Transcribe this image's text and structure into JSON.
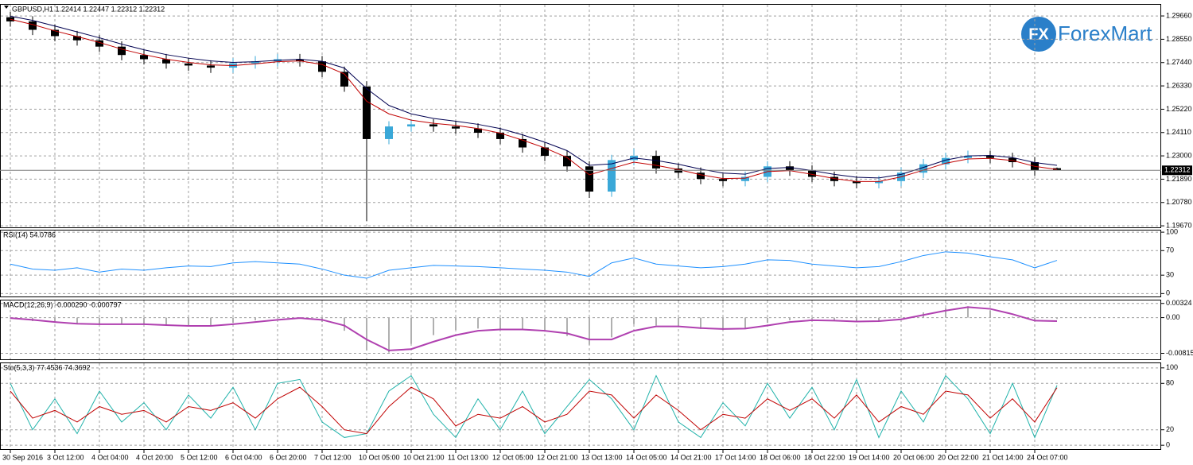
{
  "logo": {
    "mark": "FX",
    "text": "ForexMart"
  },
  "chart_data": [
    {
      "type": "candlestick",
      "title": "GBPUSD,H1  1.22414 1.22447 1.22312 1.22312",
      "last_price": 1.22312,
      "grid": true,
      "categories": [
        "30 Sep 2016",
        null,
        "3 Oct 12:00",
        null,
        "4 Oct 04:00",
        null,
        "4 Oct 20:00",
        null,
        "5 Oct 12:00",
        null,
        "6 Oct 04:00",
        null,
        "6 Oct 20:00",
        null,
        "7 Oct 12:00",
        null,
        "10 Oct 05:00",
        null,
        "10 Oct 21:00",
        null,
        "11 Oct 13:00",
        null,
        "12 Oct 05:00",
        null,
        "12 Oct 21:00",
        null,
        "13 Oct 13:00",
        null,
        "14 Oct 05:00",
        null,
        "14 Oct 21:00",
        null,
        "17 Oct 14:00",
        null,
        "18 Oct 06:00",
        null,
        "18 Oct 22:00",
        null,
        "19 Oct 14:00",
        null,
        "20 Oct 06:00",
        null,
        "20 Oct 22:00",
        null,
        "21 Oct 14:00",
        null,
        "24 Oct 07:00",
        null
      ],
      "open": [
        1.296,
        1.294,
        1.29,
        1.287,
        1.285,
        1.282,
        1.278,
        1.276,
        1.274,
        1.273,
        1.272,
        1.274,
        1.275,
        1.276,
        1.275,
        1.27,
        1.263,
        1.238,
        1.244,
        1.245,
        1.244,
        1.243,
        1.241,
        1.238,
        1.234,
        1.23,
        1.225,
        1.213,
        1.228,
        1.23,
        1.224,
        1.222,
        1.219,
        1.218,
        1.22,
        1.225,
        1.223,
        1.22,
        1.218,
        1.217,
        1.218,
        1.222,
        1.226,
        1.229,
        1.23,
        1.229,
        1.227,
        1.22414
      ],
      "high": [
        1.2985,
        1.2965,
        1.2925,
        1.2895,
        1.2875,
        1.2845,
        1.2805,
        1.2785,
        1.2765,
        1.2755,
        1.2765,
        1.2775,
        1.2785,
        1.2785,
        1.2775,
        1.2725,
        1.2655,
        1.2465,
        1.2475,
        1.2475,
        1.2465,
        1.2455,
        1.2435,
        1.2405,
        1.2365,
        1.2325,
        1.2275,
        1.2305,
        1.2335,
        1.2325,
        1.2265,
        1.2245,
        1.2215,
        1.2225,
        1.2275,
        1.2275,
        1.2255,
        1.2225,
        1.2205,
        1.2205,
        1.2245,
        1.2285,
        1.2315,
        1.2325,
        1.2325,
        1.2315,
        1.2295,
        1.22447
      ],
      "low": [
        1.2915,
        1.2875,
        1.2845,
        1.2825,
        1.2795,
        1.2755,
        1.2735,
        1.2715,
        1.2705,
        1.2695,
        1.2695,
        1.2715,
        1.2725,
        1.2725,
        1.2675,
        1.2605,
        1.199,
        1.2355,
        1.2415,
        1.2415,
        1.2405,
        1.2385,
        1.2355,
        1.2315,
        1.2275,
        1.2225,
        1.21,
        1.2105,
        1.2255,
        1.2215,
        1.2195,
        1.2165,
        1.2155,
        1.2155,
        1.2175,
        1.2205,
        1.2175,
        1.2155,
        1.2145,
        1.2145,
        1.2155,
        1.2195,
        1.2235,
        1.2265,
        1.2265,
        1.2245,
        1.2205,
        1.22312
      ],
      "close": [
        1.294,
        1.29,
        1.287,
        1.285,
        1.282,
        1.278,
        1.276,
        1.274,
        1.273,
        1.272,
        1.274,
        1.275,
        1.276,
        1.275,
        1.27,
        1.263,
        1.238,
        1.244,
        1.245,
        1.244,
        1.243,
        1.241,
        1.238,
        1.234,
        1.23,
        1.225,
        1.213,
        1.228,
        1.23,
        1.224,
        1.222,
        1.219,
        1.218,
        1.22,
        1.225,
        1.223,
        1.22,
        1.218,
        1.217,
        1.218,
        1.222,
        1.226,
        1.229,
        1.23,
        1.229,
        1.227,
        1.223,
        1.22312
      ],
      "up_color": "#3aa8d8",
      "down_color": "#000000",
      "lines": [
        {
          "color": "#c00000",
          "values": [
            1.295,
            1.2925,
            1.2895,
            1.2868,
            1.284,
            1.2808,
            1.2782,
            1.276,
            1.2745,
            1.2733,
            1.273,
            1.2738,
            1.2748,
            1.2752,
            1.2735,
            1.269,
            1.256,
            1.25,
            1.247,
            1.2455,
            1.2445,
            1.243,
            1.2408,
            1.2375,
            1.2338,
            1.2292,
            1.221,
            1.224,
            1.227,
            1.2255,
            1.2235,
            1.221,
            1.2192,
            1.2194,
            1.2225,
            1.223,
            1.2212,
            1.2192,
            1.2178,
            1.2178,
            1.22,
            1.2232,
            1.2265,
            1.2285,
            1.2288,
            1.2278,
            1.225,
            1.2235
          ]
        },
        {
          "color": "#000050",
          "values": [
            1.2965,
            1.2945,
            1.2918,
            1.289,
            1.2862,
            1.2832,
            1.2805,
            1.2782,
            1.2765,
            1.2752,
            1.2745,
            1.2748,
            1.2755,
            1.276,
            1.275,
            1.2718,
            1.262,
            1.254,
            1.25,
            1.2478,
            1.2465,
            1.245,
            1.243,
            1.24,
            1.2365,
            1.2325,
            1.2255,
            1.2262,
            1.229,
            1.2278,
            1.226,
            1.2237,
            1.2218,
            1.2213,
            1.224,
            1.2245,
            1.223,
            1.2212,
            1.2198,
            1.2195,
            1.2212,
            1.2245,
            1.228,
            1.23,
            1.2302,
            1.2292,
            1.2268,
            1.2255
          ]
        }
      ],
      "ylim": [
        1.1956,
        1.3023
      ],
      "yticks": [
        {
          "value": 1.2966,
          "label": "1.29660"
        },
        {
          "value": 1.2855,
          "label": "1.28550"
        },
        {
          "value": 1.2744,
          "label": "1.27440"
        },
        {
          "value": 1.2633,
          "label": "1.26330"
        },
        {
          "value": 1.2522,
          "label": "1.25220"
        },
        {
          "value": 1.2411,
          "label": "1.24110"
        },
        {
          "value": 1.23,
          "label": "1.23000"
        },
        {
          "value": 1.2189,
          "label": "1.21890"
        },
        {
          "value": 1.2078,
          "label": "1.20780"
        },
        {
          "value": 1.1967,
          "label": "1.19670"
        }
      ]
    },
    {
      "type": "line",
      "title": "RSI(14) 54.0786",
      "grid": true,
      "series": [
        {
          "color": "#1e90ff",
          "values": [
            48,
            40,
            38,
            42,
            35,
            40,
            38,
            42,
            45,
            44,
            50,
            52,
            50,
            48,
            40,
            30,
            25,
            38,
            42,
            46,
            45,
            44,
            42,
            40,
            38,
            35,
            28,
            50,
            58,
            48,
            45,
            42,
            44,
            48,
            55,
            54,
            48,
            45,
            42,
            44,
            52,
            62,
            68,
            66,
            60,
            55,
            42,
            54.0786
          ]
        }
      ],
      "ylim": [
        -6,
        104
      ],
      "yticks": [
        100,
        70,
        30,
        0
      ]
    },
    {
      "type": "combo",
      "title": "MACD(12,26,9) -0.000290 -0.000797",
      "grid": true,
      "series": [
        {
          "kind": "bar",
          "color": "#b0b0b0",
          "values": [
            -0.0002,
            -0.0008,
            -0.0012,
            -0.0015,
            -0.0016,
            -0.0014,
            -0.0015,
            -0.0018,
            -0.002,
            -0.0018,
            -0.0012,
            -0.0006,
            -0.0002,
            0,
            -0.001,
            -0.003,
            -0.0075,
            -0.008,
            -0.006,
            -0.004,
            -0.0028,
            -0.0025,
            -0.0026,
            -0.0028,
            -0.0032,
            -0.0042,
            -0.0062,
            -0.0045,
            -0.0015,
            -0.0018,
            -0.0022,
            -0.0026,
            -0.0028,
            -0.0024,
            -0.0012,
            -0.0006,
            -0.0004,
            -0.0008,
            -0.001,
            -0.0008,
            0,
            0.0012,
            0.0022,
            0.0026,
            0.0016,
            0.0002,
            -0.0006,
            -0.00029
          ]
        },
        {
          "kind": "line",
          "color": "#b040b0",
          "values": [
            -0.0001,
            -0.0005,
            -0.001,
            -0.0014,
            -0.0015,
            -0.0015,
            -0.0015,
            -0.0017,
            -0.0019,
            -0.0019,
            -0.0015,
            -0.001,
            -0.0005,
            -0.0001,
            -0.0005,
            -0.0018,
            -0.005,
            -0.0075,
            -0.0072,
            -0.0055,
            -0.004,
            -0.003,
            -0.0027,
            -0.0027,
            -0.003,
            -0.0036,
            -0.005,
            -0.005,
            -0.003,
            -0.002,
            -0.002,
            -0.0024,
            -0.0026,
            -0.0025,
            -0.0018,
            -0.001,
            -0.0006,
            -0.0007,
            -0.0009,
            -0.0008,
            -0.0004,
            0.0006,
            0.0016,
            0.0024,
            0.002,
            0.0008,
            -0.0007,
            -0.000797
          ]
        }
      ],
      "ylim": [
        -0.0097,
        0.0041
      ],
      "yticks": [
        0.00324,
        {
          "value": 0,
          "label": "0.00"
        },
        -0.008156
      ]
    },
    {
      "type": "line",
      "title": "Sto(5,3,3) 77.4536 74.3692",
      "grid": true,
      "series": [
        {
          "color": "#20b2aa",
          "values": [
            80,
            20,
            60,
            15,
            70,
            30,
            55,
            20,
            65,
            35,
            75,
            20,
            80,
            85,
            30,
            10,
            15,
            70,
            90,
            40,
            10,
            60,
            20,
            70,
            15,
            50,
            85,
            60,
            20,
            90,
            30,
            10,
            55,
            25,
            80,
            35,
            75,
            20,
            85,
            10,
            70,
            30,
            90,
            60,
            15,
            80,
            10,
            77.4536
          ]
        },
        {
          "color": "#c00000",
          "values": [
            70,
            35,
            45,
            30,
            50,
            40,
            45,
            30,
            50,
            45,
            55,
            35,
            60,
            75,
            50,
            20,
            15,
            50,
            75,
            60,
            25,
            40,
            35,
            50,
            30,
            40,
            70,
            65,
            35,
            65,
            45,
            20,
            40,
            35,
            60,
            45,
            60,
            35,
            65,
            30,
            50,
            40,
            70,
            65,
            35,
            60,
            30,
            74.3692
          ]
        }
      ],
      "ylim": [
        -6,
        107
      ],
      "yticks": [
        100,
        80,
        20,
        0
      ]
    }
  ]
}
